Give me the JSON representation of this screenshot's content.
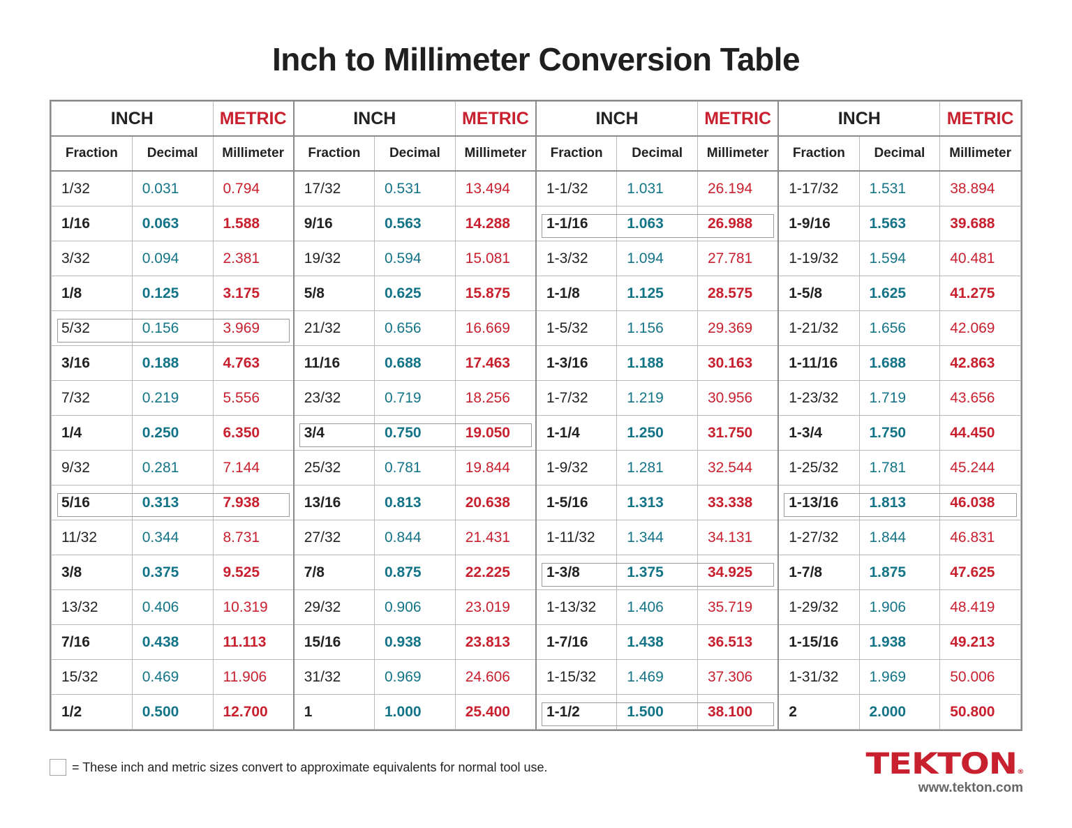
{
  "title": "Inch to Millimeter Conversion Table",
  "headers": {
    "inch": "INCH",
    "metric": "METRIC",
    "fraction": "Fraction",
    "decimal": "Decimal",
    "millimeter": "Millimeter"
  },
  "colors": {
    "inch_text": "#222222",
    "decimal": "#137487",
    "metric": "#c8202e",
    "brand": "#c8202e"
  },
  "groups": [
    {
      "rows": [
        {
          "f": "1/32",
          "d": "0.031",
          "m": "0.794",
          "bold": false,
          "hl": false
        },
        {
          "f": "1/16",
          "d": "0.063",
          "m": "1.588",
          "bold": true,
          "hl": false
        },
        {
          "f": "3/32",
          "d": "0.094",
          "m": "2.381",
          "bold": false,
          "hl": false
        },
        {
          "f": "1/8",
          "d": "0.125",
          "m": "3.175",
          "bold": true,
          "hl": false
        },
        {
          "f": "5/32",
          "d": "0.156",
          "m": "3.969",
          "bold": false,
          "hl": true
        },
        {
          "f": "3/16",
          "d": "0.188",
          "m": "4.763",
          "bold": true,
          "hl": false
        },
        {
          "f": "7/32",
          "d": "0.219",
          "m": "5.556",
          "bold": false,
          "hl": false
        },
        {
          "f": "1/4",
          "d": "0.250",
          "m": "6.350",
          "bold": true,
          "hl": false
        },
        {
          "f": "9/32",
          "d": "0.281",
          "m": "7.144",
          "bold": false,
          "hl": false
        },
        {
          "f": "5/16",
          "d": "0.313",
          "m": "7.938",
          "bold": true,
          "hl": true
        },
        {
          "f": "11/32",
          "d": "0.344",
          "m": "8.731",
          "bold": false,
          "hl": false
        },
        {
          "f": "3/8",
          "d": "0.375",
          "m": "9.525",
          "bold": true,
          "hl": false
        },
        {
          "f": "13/32",
          "d": "0.406",
          "m": "10.319",
          "bold": false,
          "hl": false
        },
        {
          "f": "7/16",
          "d": "0.438",
          "m": "11.113",
          "bold": true,
          "hl": false
        },
        {
          "f": "15/32",
          "d": "0.469",
          "m": "11.906",
          "bold": false,
          "hl": false
        },
        {
          "f": "1/2",
          "d": "0.500",
          "m": "12.700",
          "bold": true,
          "hl": false
        }
      ]
    },
    {
      "rows": [
        {
          "f": "17/32",
          "d": "0.531",
          "m": "13.494",
          "bold": false,
          "hl": false
        },
        {
          "f": "9/16",
          "d": "0.563",
          "m": "14.288",
          "bold": true,
          "hl": false
        },
        {
          "f": "19/32",
          "d": "0.594",
          "m": "15.081",
          "bold": false,
          "hl": false
        },
        {
          "f": "5/8",
          "d": "0.625",
          "m": "15.875",
          "bold": true,
          "hl": false
        },
        {
          "f": "21/32",
          "d": "0.656",
          "m": "16.669",
          "bold": false,
          "hl": false
        },
        {
          "f": "11/16",
          "d": "0.688",
          "m": "17.463",
          "bold": true,
          "hl": false
        },
        {
          "f": "23/32",
          "d": "0.719",
          "m": "18.256",
          "bold": false,
          "hl": false
        },
        {
          "f": "3/4",
          "d": "0.750",
          "m": "19.050",
          "bold": true,
          "hl": true
        },
        {
          "f": "25/32",
          "d": "0.781",
          "m": "19.844",
          "bold": false,
          "hl": false
        },
        {
          "f": "13/16",
          "d": "0.813",
          "m": "20.638",
          "bold": true,
          "hl": false
        },
        {
          "f": "27/32",
          "d": "0.844",
          "m": "21.431",
          "bold": false,
          "hl": false
        },
        {
          "f": "7/8",
          "d": "0.875",
          "m": "22.225",
          "bold": true,
          "hl": false
        },
        {
          "f": "29/32",
          "d": "0.906",
          "m": "23.019",
          "bold": false,
          "hl": false
        },
        {
          "f": "15/16",
          "d": "0.938",
          "m": "23.813",
          "bold": true,
          "hl": false
        },
        {
          "f": "31/32",
          "d": "0.969",
          "m": "24.606",
          "bold": false,
          "hl": false
        },
        {
          "f": "1",
          "d": "1.000",
          "m": "25.400",
          "bold": true,
          "hl": false
        }
      ]
    },
    {
      "rows": [
        {
          "f": "1-1/32",
          "d": "1.031",
          "m": "26.194",
          "bold": false,
          "hl": false
        },
        {
          "f": "1-1/16",
          "d": "1.063",
          "m": "26.988",
          "bold": true,
          "hl": true
        },
        {
          "f": "1-3/32",
          "d": "1.094",
          "m": "27.781",
          "bold": false,
          "hl": false
        },
        {
          "f": "1-1/8",
          "d": "1.125",
          "m": "28.575",
          "bold": true,
          "hl": false
        },
        {
          "f": "1-5/32",
          "d": "1.156",
          "m": "29.369",
          "bold": false,
          "hl": false
        },
        {
          "f": "1-3/16",
          "d": "1.188",
          "m": "30.163",
          "bold": true,
          "hl": false
        },
        {
          "f": "1-7/32",
          "d": "1.219",
          "m": "30.956",
          "bold": false,
          "hl": false
        },
        {
          "f": "1-1/4",
          "d": "1.250",
          "m": "31.750",
          "bold": true,
          "hl": false
        },
        {
          "f": "1-9/32",
          "d": "1.281",
          "m": "32.544",
          "bold": false,
          "hl": false
        },
        {
          "f": "1-5/16",
          "d": "1.313",
          "m": "33.338",
          "bold": true,
          "hl": false
        },
        {
          "f": "1-11/32",
          "d": "1.344",
          "m": "34.131",
          "bold": false,
          "hl": false
        },
        {
          "f": "1-3/8",
          "d": "1.375",
          "m": "34.925",
          "bold": true,
          "hl": true
        },
        {
          "f": "1-13/32",
          "d": "1.406",
          "m": "35.719",
          "bold": false,
          "hl": false
        },
        {
          "f": "1-7/16",
          "d": "1.438",
          "m": "36.513",
          "bold": true,
          "hl": false
        },
        {
          "f": "1-15/32",
          "d": "1.469",
          "m": "37.306",
          "bold": false,
          "hl": false
        },
        {
          "f": "1-1/2",
          "d": "1.500",
          "m": "38.100",
          "bold": true,
          "hl": true
        }
      ]
    },
    {
      "rows": [
        {
          "f": "1-17/32",
          "d": "1.531",
          "m": "38.894",
          "bold": false,
          "hl": false
        },
        {
          "f": "1-9/16",
          "d": "1.563",
          "m": "39.688",
          "bold": true,
          "hl": false
        },
        {
          "f": "1-19/32",
          "d": "1.594",
          "m": "40.481",
          "bold": false,
          "hl": false
        },
        {
          "f": "1-5/8",
          "d": "1.625",
          "m": "41.275",
          "bold": true,
          "hl": false
        },
        {
          "f": "1-21/32",
          "d": "1.656",
          "m": "42.069",
          "bold": false,
          "hl": false
        },
        {
          "f": "1-11/16",
          "d": "1.688",
          "m": "42.863",
          "bold": true,
          "hl": false
        },
        {
          "f": "1-23/32",
          "d": "1.719",
          "m": "43.656",
          "bold": false,
          "hl": false
        },
        {
          "f": "1-3/4",
          "d": "1.750",
          "m": "44.450",
          "bold": true,
          "hl": false
        },
        {
          "f": "1-25/32",
          "d": "1.781",
          "m": "45.244",
          "bold": false,
          "hl": false
        },
        {
          "f": "1-13/16",
          "d": "1.813",
          "m": "46.038",
          "bold": true,
          "hl": true
        },
        {
          "f": "1-27/32",
          "d": "1.844",
          "m": "46.831",
          "bold": false,
          "hl": false
        },
        {
          "f": "1-7/8",
          "d": "1.875",
          "m": "47.625",
          "bold": true,
          "hl": false
        },
        {
          "f": "1-29/32",
          "d": "1.906",
          "m": "48.419",
          "bold": false,
          "hl": false
        },
        {
          "f": "1-15/16",
          "d": "1.938",
          "m": "49.213",
          "bold": true,
          "hl": false
        },
        {
          "f": "1-31/32",
          "d": "1.969",
          "m": "50.006",
          "bold": false,
          "hl": false
        },
        {
          "f": "2",
          "d": "2.000",
          "m": "50.800",
          "bold": true,
          "hl": false
        }
      ]
    }
  ],
  "legend": {
    "text": "= These inch and metric sizes convert to approximate equivalents for normal tool use."
  },
  "brand": {
    "logo": "TEKTON",
    "registered": "®",
    "url": "www.tekton.com"
  }
}
